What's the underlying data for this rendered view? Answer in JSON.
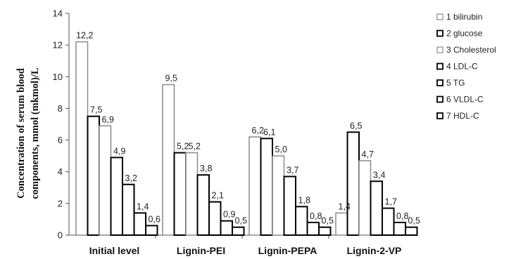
{
  "chart_data": {
    "type": "bar",
    "title": "",
    "xlabel": "",
    "ylabel_lines": [
      "Concentration of serum blood",
      "components, mmol (mkmol)/L"
    ],
    "ylim": [
      0,
      14
    ],
    "yticks": [
      0,
      2,
      4,
      6,
      8,
      10,
      12,
      14
    ],
    "categories": [
      "Initial level",
      "Lignin-PEI",
      "Lignin-PEPA",
      "Lignin-2-VP"
    ],
    "legend_position": "top-right",
    "grid": false,
    "series": [
      {
        "name": "1 bilirubin",
        "style": "light",
        "values": [
          12.2,
          9.5,
          6.2,
          1.4
        ],
        "labels": [
          "12,2",
          "9,5",
          "6,2",
          "1,4"
        ]
      },
      {
        "name": "2 glucose",
        "style": "dark",
        "values": [
          7.5,
          5.2,
          6.1,
          6.5
        ],
        "labels": [
          "7,5",
          "5,2",
          "6,1",
          "6,5"
        ]
      },
      {
        "name": "3 Cholesterol",
        "style": "light",
        "values": [
          6.9,
          5.2,
          5.0,
          4.7
        ],
        "labels": [
          "6,9",
          "5,2",
          "5,0",
          "4,7"
        ]
      },
      {
        "name": "4 LDL-C",
        "style": "dark",
        "values": [
          4.9,
          3.8,
          3.7,
          3.4
        ],
        "labels": [
          "4,9",
          "3,8",
          "3,7",
          "3,4"
        ]
      },
      {
        "name": "5 TG",
        "style": "dark",
        "values": [
          3.2,
          2.1,
          1.8,
          1.7
        ],
        "labels": [
          "3,2",
          "2,1",
          "1,8",
          "1,7"
        ]
      },
      {
        "name": "6 VLDL-C",
        "style": "dark",
        "values": [
          1.4,
          0.9,
          0.8,
          0.8
        ],
        "labels": [
          "1,4",
          "0,9",
          "0,8",
          "0,8"
        ]
      },
      {
        "name": "7 HDL-C",
        "style": "dark",
        "values": [
          0.6,
          0.5,
          0.5,
          0.5
        ],
        "labels": [
          "0,6",
          "0,5",
          "0,5",
          "0,5"
        ]
      }
    ],
    "colors": {
      "light_stroke": "#8c8c8c",
      "dark_stroke": "#000000",
      "fill": "#ffffff",
      "axis": "#555555"
    }
  }
}
